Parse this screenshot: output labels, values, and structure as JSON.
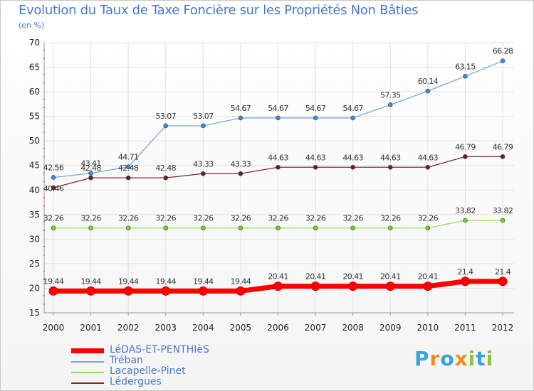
{
  "title": "Evolution du Taux de Taxe Foncière sur les Propriétés Non Bâties",
  "unit_label": "(en %)",
  "chart_data": {
    "type": "line",
    "title": "Evolution du Taux de Taxe Foncière sur les Propriétés Non Bâties",
    "ylabel": "(en %)",
    "xlabel": "",
    "ylim": [
      15,
      70
    ],
    "yticks": [
      15,
      20,
      25,
      30,
      35,
      40,
      45,
      50,
      55,
      60,
      65,
      70
    ],
    "categories": [
      "2000",
      "2001",
      "2002",
      "2003",
      "2004",
      "2005",
      "2006",
      "2007",
      "2008",
      "2009",
      "2010",
      "2011",
      "2012"
    ],
    "grid": true,
    "series": [
      {
        "name": "LéDAS-ET-PENTHIèS",
        "color": "#ff0000",
        "values": [
          19.44,
          19.44,
          19.44,
          19.44,
          19.44,
          19.44,
          20.41,
          20.41,
          20.41,
          20.41,
          20.41,
          21.4,
          21.4
        ],
        "labels": [
          "19.44",
          "19.44",
          "19.44",
          "19.44",
          "19.44",
          "19.44",
          "20.41",
          "20.41",
          "20.41",
          "20.41",
          "20.41",
          "21.4",
          "21.4"
        ]
      },
      {
        "name": "Tréban",
        "color": "#7ba7d6",
        "marker_color": "#3a8fd6",
        "values": [
          42.56,
          43.41,
          44.71,
          53.07,
          53.07,
          54.67,
          54.67,
          54.67,
          54.67,
          57.35,
          60.14,
          63.15,
          66.28
        ],
        "labels": [
          "42.56",
          "43.41",
          "44.71",
          "53.07",
          "53.07",
          "54.67",
          "54.67",
          "54.67",
          "54.67",
          "57.35",
          "60.14",
          "63.15",
          "66.28"
        ]
      },
      {
        "name": "Lacapelle-Pinet",
        "color": "#99dd55",
        "marker_color": "#77cc33",
        "values": [
          32.26,
          32.26,
          32.26,
          32.26,
          32.26,
          32.26,
          32.26,
          32.26,
          32.26,
          32.26,
          32.26,
          33.82,
          33.82
        ],
        "labels": [
          "32.26",
          "32.26",
          "32.26",
          "32.26",
          "32.26",
          "32.26",
          "32.26",
          "32.26",
          "32.26",
          "32.26",
          "32.26",
          "33.82",
          "33.82"
        ]
      },
      {
        "name": "Lédergues",
        "color": "#7a2a2a",
        "marker_color": "#6b2020",
        "values": [
          40.46,
          42.48,
          42.48,
          42.48,
          43.33,
          43.33,
          44.63,
          44.63,
          44.63,
          44.63,
          44.63,
          46.79,
          46.79
        ],
        "labels": [
          "40.46",
          "42.48",
          "42.48",
          "42.48",
          "43.33",
          "43.33",
          "44.63",
          "44.63",
          "44.63",
          "44.63",
          "44.63",
          "46.79",
          "46.79"
        ]
      }
    ]
  },
  "legend": {
    "items": [
      {
        "label": "LéDAS-ET-PENTHIèS",
        "color": "#ff0000"
      },
      {
        "label": "Tréban",
        "color": "#7ba7d6"
      },
      {
        "label": "Lacapelle-Pinet",
        "color": "#99dd55"
      },
      {
        "label": "Lédergues",
        "color": "#7a2a2a"
      }
    ]
  },
  "logo": {
    "text": "Proxiti",
    "letters": [
      "P",
      "r",
      "o",
      "x",
      "i",
      "t",
      "i"
    ],
    "colors": [
      "#3aa0e0",
      "#f08c1e",
      "#3aa0e0",
      "#f08c1e",
      "#8cc63f",
      "#3aa0e0",
      "#8cc63f"
    ]
  }
}
